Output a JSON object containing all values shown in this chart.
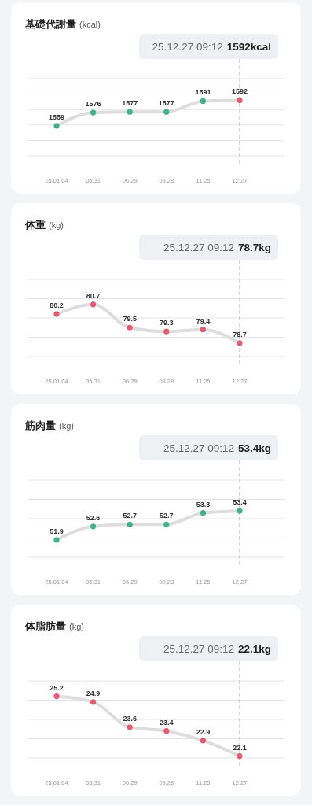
{
  "chart_data": [
    {
      "type": "line",
      "title": "基礎代謝量",
      "subtitle": "(kcal)",
      "categories": [
        "25.01.04",
        "05.31",
        "06.29",
        "09.28",
        "11.25",
        "12.27"
      ],
      "series": [
        {
          "color": "#dddddd",
          "colors": [
            "#45b08c",
            "#45b08c",
            "#45b08c",
            "#45b08c",
            "#45b08c",
            "#e35d72"
          ],
          "values": [
            1559,
            1576,
            1577,
            1577,
            1591,
            1592
          ]
        }
      ],
      "ylim": [
        1520,
        1620
      ],
      "yticks": [
        {
          "value": 1520,
          "label": null
        },
        {
          "value": 1540,
          "label": null
        },
        {
          "value": 1560,
          "label": null
        },
        {
          "value": 1580,
          "label": null
        },
        {
          "value": 1600,
          "label": null
        },
        {
          "value": 1620,
          "label": null
        }
      ],
      "tick_labels": "x",
      "grid": "y",
      "marker": "circle",
      "data_labels": true,
      "ref_lines": [
        {
          "axis": "x",
          "value": "12.27",
          "color": "#bbbbbb",
          "line_style": "dashed"
        }
      ],
      "annotations": [
        "25.12.27 09:12 1592kcal"
      ]
    },
    {
      "type": "line",
      "title": "体重",
      "subtitle": "(kg)",
      "categories": [
        "25.01.04",
        "05.31",
        "06.29",
        "09.28",
        "11.25",
        "12.27"
      ],
      "series": [
        {
          "color": "#dddddd",
          "colors": [
            "#e35d72",
            "#e35d72",
            "#e35d72",
            "#e35d72",
            "#e35d72",
            "#e35d72"
          ],
          "values": [
            80.2,
            80.7,
            79.5,
            79.3,
            79.4,
            78.7
          ]
        }
      ],
      "ylim": [
        78,
        82
      ],
      "yticks": [
        {
          "value": 78,
          "label": null
        },
        {
          "value": 79,
          "label": null
        },
        {
          "value": 80,
          "label": null
        },
        {
          "value": 81,
          "label": null
        },
        {
          "value": 82,
          "label": null
        }
      ],
      "tick_labels": "x",
      "grid": "y",
      "marker": "circle",
      "data_labels": true,
      "ref_lines": [
        {
          "axis": "x",
          "value": "12.27",
          "color": "#bbbbbb",
          "line_style": "dashed"
        }
      ],
      "annotations": [
        "25.12.27 09:12 78.7kg"
      ]
    },
    {
      "type": "line",
      "title": "筋肉量",
      "subtitle": "(kg)",
      "categories": [
        "25.01.04",
        "05.31",
        "06.29",
        "09.28",
        "11.25",
        "12.27"
      ],
      "series": [
        {
          "color": "#dddddd",
          "colors": [
            "#45b08c",
            "#45b08c",
            "#45b08c",
            "#45b08c",
            "#45b08c",
            "#45b08c"
          ],
          "values": [
            51.9,
            52.6,
            52.7,
            52.7,
            53.3,
            53.4
          ]
        }
      ],
      "ylim": [
        51,
        55
      ],
      "yticks": [
        {
          "value": 51,
          "label": null
        },
        {
          "value": 52,
          "label": null
        },
        {
          "value": 53,
          "label": null
        },
        {
          "value": 54,
          "label": null
        },
        {
          "value": 55,
          "label": null
        }
      ],
      "tick_labels": "x",
      "grid": "y",
      "marker": "circle",
      "data_labels": true,
      "ref_lines": [
        {
          "axis": "x",
          "value": "12.27",
          "color": "#bbbbbb",
          "line_style": "dashed"
        }
      ],
      "annotations": [
        "25.12.27 09:12 53.4kg"
      ]
    },
    {
      "type": "line",
      "title": "体脂肪量",
      "subtitle": "(kg)",
      "categories": [
        "25.01.04",
        "05.31",
        "06.29",
        "09.28",
        "11.25",
        "12.27"
      ],
      "series": [
        {
          "color": "#dddddd",
          "colors": [
            "#e35d72",
            "#e35d72",
            "#e35d72",
            "#e35d72",
            "#e35d72",
            "#e35d72"
          ],
          "values": [
            25.2,
            24.9,
            23.6,
            23.4,
            22.9,
            22.1
          ]
        }
      ],
      "ylim": [
        22,
        26
      ],
      "yticks": [
        {
          "value": 22,
          "label": null
        },
        {
          "value": 23,
          "label": null
        },
        {
          "value": 24,
          "label": null
        },
        {
          "value": 25,
          "label": null
        },
        {
          "value": 26,
          "label": null
        }
      ],
      "tick_labels": "x",
      "grid": "y",
      "marker": "circle",
      "data_labels": true,
      "ref_lines": [
        {
          "axis": "x",
          "value": "12.27",
          "color": "#bbbbbb",
          "line_style": "dashed"
        }
      ],
      "annotations": [
        "25.12.27 09:12 22.1kg"
      ]
    }
  ]
}
